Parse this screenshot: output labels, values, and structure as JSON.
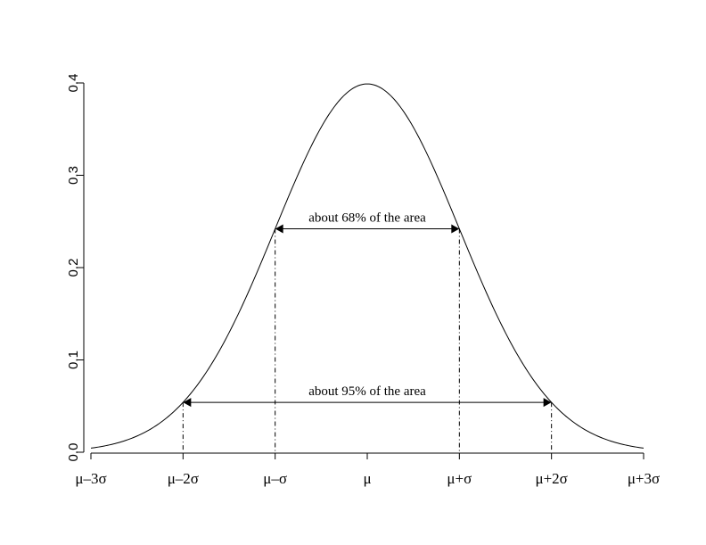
{
  "chart_data": {
    "type": "line",
    "title": "",
    "xlabel": "",
    "ylabel": "",
    "xlim": [
      -3,
      3
    ],
    "ylim": [
      0,
      0.4
    ],
    "grid": false,
    "x_ticks": [
      -3,
      -2,
      -1,
      0,
      1,
      2,
      3
    ],
    "x_tick_labels": [
      "μ–3σ",
      "μ–2σ",
      "μ–σ",
      "μ",
      "μ+σ",
      "μ+2σ",
      "μ+3σ"
    ],
    "y_ticks": [
      0.0,
      0.1,
      0.2,
      0.3,
      0.4
    ],
    "y_tick_labels": [
      "0.0",
      "0.1",
      "0.2",
      "0.3",
      "0.4"
    ],
    "series": [
      {
        "x": [
          -3,
          -2.5,
          -2,
          -1.5,
          -1,
          -0.5,
          0,
          0.5,
          1,
          1.5,
          2,
          2.5,
          3
        ],
        "values": [
          0.0044,
          0.0175,
          0.054,
          0.1295,
          0.242,
          0.3521,
          0.3989,
          0.3521,
          0.242,
          0.1295,
          0.054,
          0.0175,
          0.0044
        ]
      }
    ],
    "annotations": [
      {
        "text": "about 68% of the area",
        "x_from": -1,
        "x_to": 1,
        "y": 0.242
      },
      {
        "text": "about 95% of the area",
        "x_from": -2,
        "x_to": 2,
        "y": 0.054
      }
    ]
  }
}
